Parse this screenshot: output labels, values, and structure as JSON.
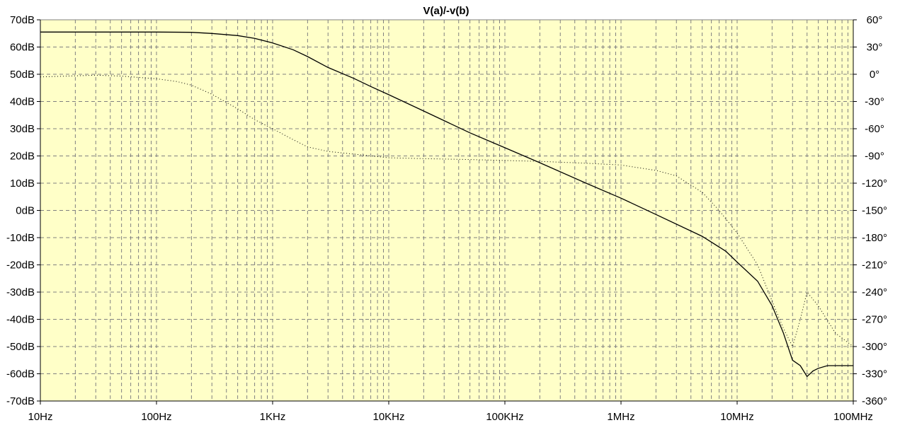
{
  "chart_data": {
    "type": "line",
    "title": "V(a)/-v(b)",
    "x_scale": "log",
    "xlim": [
      10,
      100000000
    ],
    "x_ticks": [
      {
        "value": 10,
        "label": "10Hz"
      },
      {
        "value": 100,
        "label": "100Hz"
      },
      {
        "value": 1000,
        "label": "1KHz"
      },
      {
        "value": 10000,
        "label": "10KHz"
      },
      {
        "value": 100000,
        "label": "100KHz"
      },
      {
        "value": 1000000,
        "label": "1MHz"
      },
      {
        "value": 10000000,
        "label": "10MHz"
      },
      {
        "value": 100000000,
        "label": "100MHz"
      }
    ],
    "ylim_left": [
      -70,
      70
    ],
    "y_ticks_left": [
      {
        "value": 70,
        "label": "70dB"
      },
      {
        "value": 60,
        "label": "60dB"
      },
      {
        "value": 50,
        "label": "50dB"
      },
      {
        "value": 40,
        "label": "40dB"
      },
      {
        "value": 30,
        "label": "30dB"
      },
      {
        "value": 20,
        "label": "20dB"
      },
      {
        "value": 10,
        "label": "10dB"
      },
      {
        "value": 0,
        "label": "0dB"
      },
      {
        "value": -10,
        "label": "-10dB"
      },
      {
        "value": -20,
        "label": "-20dB"
      },
      {
        "value": -30,
        "label": "-30dB"
      },
      {
        "value": -40,
        "label": "-40dB"
      },
      {
        "value": -50,
        "label": "-50dB"
      },
      {
        "value": -60,
        "label": "-60dB"
      },
      {
        "value": -70,
        "label": "-70dB"
      }
    ],
    "ylim_right": [
      -360,
      60
    ],
    "y_ticks_right": [
      {
        "value": 60,
        "label": "60°"
      },
      {
        "value": 30,
        "label": "30°"
      },
      {
        "value": 0,
        "label": "0°"
      },
      {
        "value": -30,
        "label": "-30°"
      },
      {
        "value": -60,
        "label": "-60°"
      },
      {
        "value": -90,
        "label": "-90°"
      },
      {
        "value": -120,
        "label": "-120°"
      },
      {
        "value": -150,
        "label": "-150°"
      },
      {
        "value": -180,
        "label": "-180°"
      },
      {
        "value": -210,
        "label": "-210°"
      },
      {
        "value": -240,
        "label": "-240°"
      },
      {
        "value": -270,
        "label": "-270°"
      },
      {
        "value": -300,
        "label": "-300°"
      },
      {
        "value": -330,
        "label": "-330°"
      },
      {
        "value": -360,
        "label": "-360°"
      }
    ],
    "grid": true,
    "series": [
      {
        "axis": "left",
        "style": "solid",
        "color": "#000000",
        "x": [
          10,
          100,
          200,
          300,
          500,
          700,
          1000,
          1500,
          2000,
          3000,
          5000,
          7000,
          10000,
          20000,
          50000,
          100000,
          200000,
          500000,
          1000000,
          2000000,
          5000000,
          8000000,
          10000000,
          15000000,
          20000000,
          25000000,
          30000000,
          35000000,
          40000000,
          45000000,
          50000000,
          60000000,
          80000000,
          100000000
        ],
        "y": [
          65.5,
          65.5,
          65.4,
          65.0,
          64.2,
          63.2,
          61.5,
          59.0,
          56.5,
          52.5,
          48.5,
          45.5,
          42.5,
          36.5,
          28.5,
          23.0,
          17.5,
          10.0,
          4.5,
          -1.5,
          -9.5,
          -15.0,
          -19.0,
          -26.0,
          -35.0,
          -45.0,
          -55.0,
          -57.0,
          -61.0,
          -59.0,
          -58.0,
          -57.0,
          -57.0,
          -57.0
        ]
      },
      {
        "axis": "right",
        "style": "dotted",
        "color": "#000000",
        "x": [
          10,
          30,
          50,
          100,
          150,
          200,
          300,
          500,
          700,
          1000,
          1500,
          2000,
          3000,
          5000,
          10000,
          20000,
          50000,
          100000,
          200000,
          500000,
          1000000,
          2000000,
          3000000,
          5000000,
          7000000,
          10000000,
          15000000,
          20000000,
          25000000,
          30000000,
          35000000,
          40000000,
          50000000,
          70000000,
          100000000
        ],
        "y": [
          -3,
          -1,
          -2,
          -5,
          -8,
          -12,
          -22,
          -38,
          -50,
          -60,
          -72,
          -80,
          -85,
          -88,
          -92,
          -93,
          -94,
          -95,
          -96,
          -98,
          -100,
          -106,
          -112,
          -130,
          -150,
          -175,
          -210,
          -250,
          -280,
          -300,
          -270,
          -240,
          -255,
          -285,
          -300
        ]
      }
    ]
  }
}
